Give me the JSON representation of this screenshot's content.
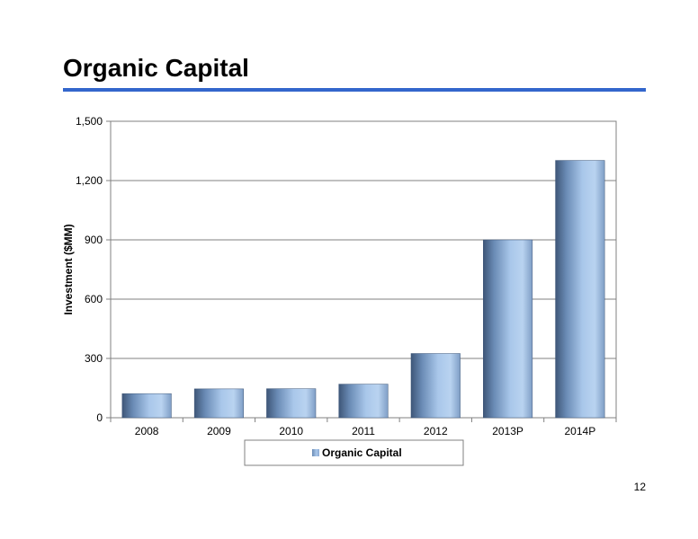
{
  "page": {
    "title": "Organic Capital",
    "page_number": "12",
    "accent_color": "#3366cc"
  },
  "chart_data": {
    "type": "bar",
    "categories": [
      "2008",
      "2009",
      "2010",
      "2011",
      "2012",
      "2013P",
      "2014P"
    ],
    "series": [
      {
        "name": "Organic Capital",
        "values": [
          122,
          146,
          147,
          170,
          325,
          900,
          1302
        ],
        "color": "#8fb3dc"
      }
    ],
    "y_tick_labels": [
      "0",
      "300",
      "600",
      "900",
      "1,200",
      "1,500"
    ],
    "y_ticks": [
      0,
      300,
      600,
      900,
      1200,
      1500
    ],
    "xlabel": "",
    "ylabel": "Investment ($MM)",
    "ylim": [
      0,
      1500
    ],
    "grid": true,
    "legend_position": "bottom"
  }
}
